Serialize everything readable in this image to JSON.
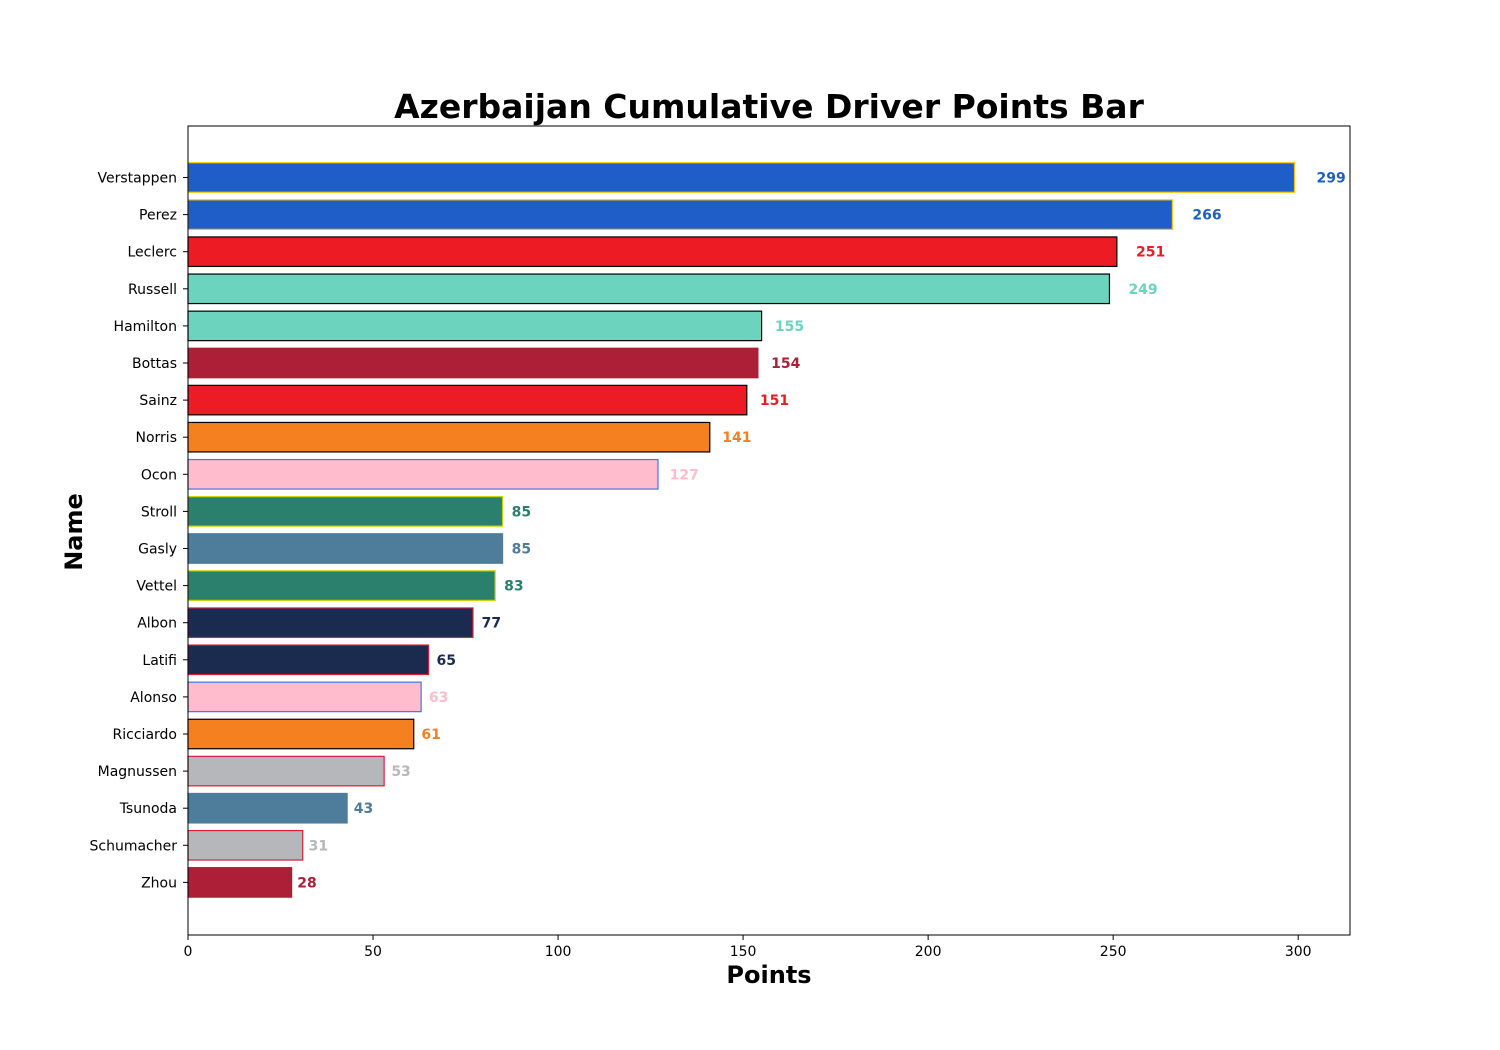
{
  "chart_data": {
    "type": "bar",
    "orientation": "horizontal",
    "title": "Azerbaijan Cumulative Driver Points Bar",
    "xlabel": "Points",
    "ylabel": "Name",
    "xlim": [
      0,
      314
    ],
    "xticks": [
      0,
      50,
      100,
      150,
      200,
      250,
      300
    ],
    "grid": false,
    "categories": [
      "Verstappen",
      "Perez",
      "Leclerc",
      "Russell",
      "Hamilton",
      "Bottas",
      "Sainz",
      "Norris",
      "Ocon",
      "Stroll",
      "Gasly",
      "Vettel",
      "Albon",
      "Latifi",
      "Alonso",
      "Ricciardo",
      "Magnussen",
      "Tsunoda",
      "Schumacher",
      "Zhou"
    ],
    "values": [
      299,
      266,
      251,
      249,
      155,
      154,
      151,
      141,
      127,
      85,
      85,
      83,
      77,
      65,
      63,
      61,
      53,
      43,
      31,
      28
    ],
    "bar_colors": [
      "#1f5ec8",
      "#1f5ec8",
      "#ed1c24",
      "#6cd3bf",
      "#6cd3bf",
      "#ac1f36",
      "#ed1c24",
      "#f58020",
      "#ffbccc",
      "#2b806d",
      "#4e7c9b",
      "#2b806d",
      "#1b2a4f",
      "#1b2a4f",
      "#ffbccc",
      "#f58020",
      "#b5b7ba",
      "#4e7c9b",
      "#b5b7ba",
      "#ac1f36"
    ],
    "edge_colors": [
      "#f5c400",
      "#f5c400",
      "#000000",
      "#000000",
      "#000000",
      "#ac1f36",
      "#000000",
      "#000000",
      "#3c7be0",
      "#c8d400",
      "#4e7c9b",
      "#c8d400",
      "#d61f3c",
      "#d61f3c",
      "#3c7be0",
      "#000000",
      "#d61f3c",
      "#4e7c9b",
      "#d61f3c",
      "#ac1f36"
    ]
  }
}
